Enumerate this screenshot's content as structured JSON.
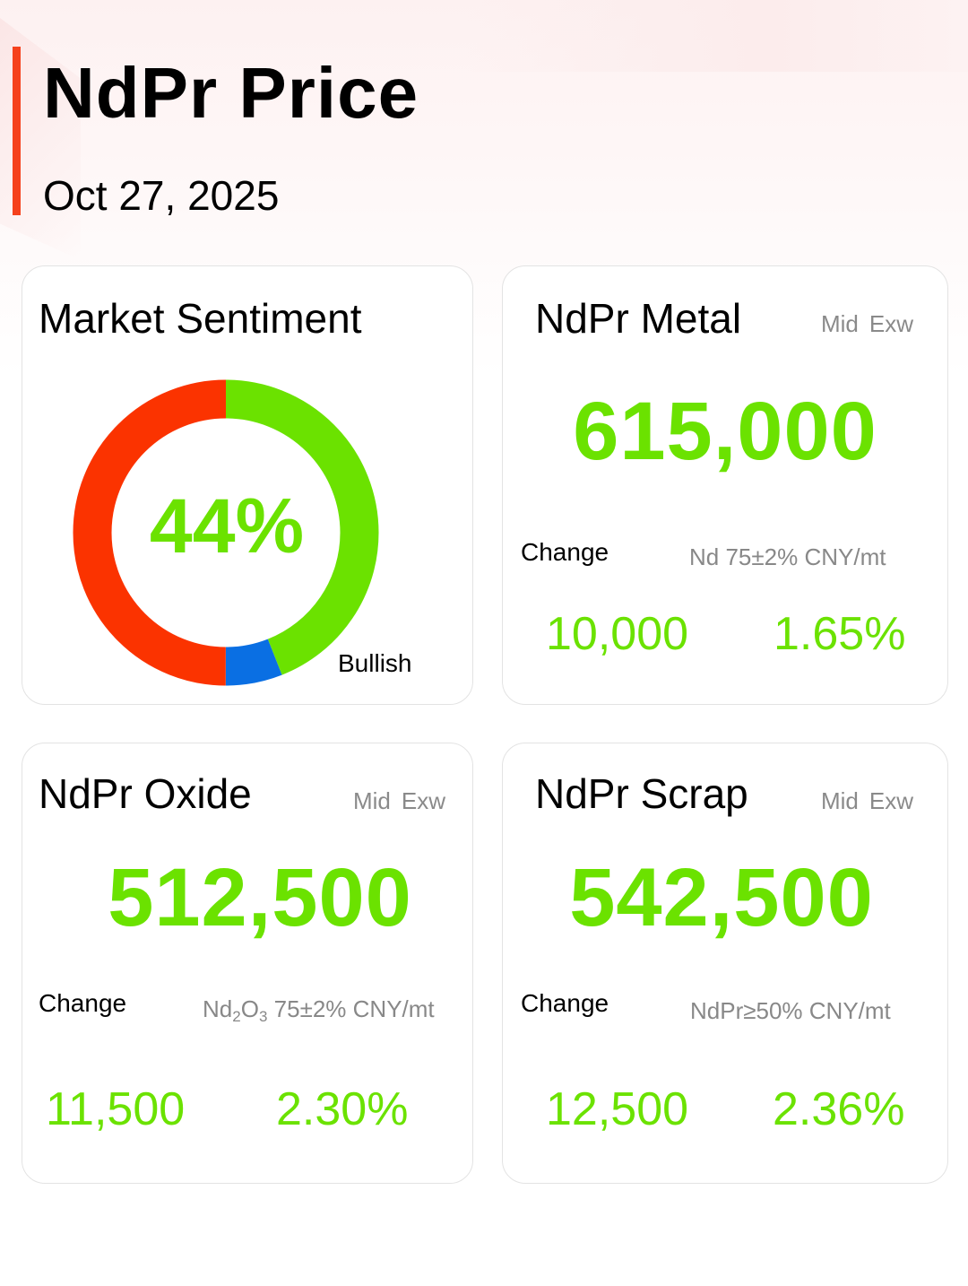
{
  "header": {
    "title": "NdPr Price",
    "date": "Oct 27, 2025"
  },
  "sentiment": {
    "title": "Market Sentiment",
    "percent_label": "44%",
    "bullish_label": "Bullish",
    "segments": [
      {
        "name": "bullish",
        "value": 44,
        "color": "#6be200"
      },
      {
        "name": "neutral",
        "value": 6,
        "color": "#0a6fe3"
      },
      {
        "name": "bearish",
        "value": 50,
        "color": "#fb3300"
      }
    ]
  },
  "metal": {
    "title": "NdPr Metal",
    "tag_mid": "Mid",
    "tag_exw": "Exw",
    "price": "615,000",
    "change_label": "Change",
    "spec": "Nd 75±2% CNY/mt",
    "change_abs": "10,000",
    "change_pct": "1.65%"
  },
  "oxide": {
    "title": "NdPr Oxide",
    "tag_mid": "Mid",
    "tag_exw": "Exw",
    "price": "512,500",
    "change_label": "Change",
    "spec_base": "Nd",
    "spec_sub1": "2",
    "spec_mid": "O",
    "spec_sub2": "3",
    "spec_rest": " 75±2% CNY/mt",
    "change_abs": "11,500",
    "change_pct": "2.30%"
  },
  "scrap": {
    "title": "NdPr Scrap",
    "tag_mid": "Mid",
    "tag_exw": "Exw",
    "price": "542,500",
    "change_label": "Change",
    "spec": "NdPr≥50% CNY/mt",
    "change_abs": "12,500",
    "change_pct": "2.36%"
  },
  "colors": {
    "accent": "#f5411c",
    "positive": "#6be200"
  }
}
